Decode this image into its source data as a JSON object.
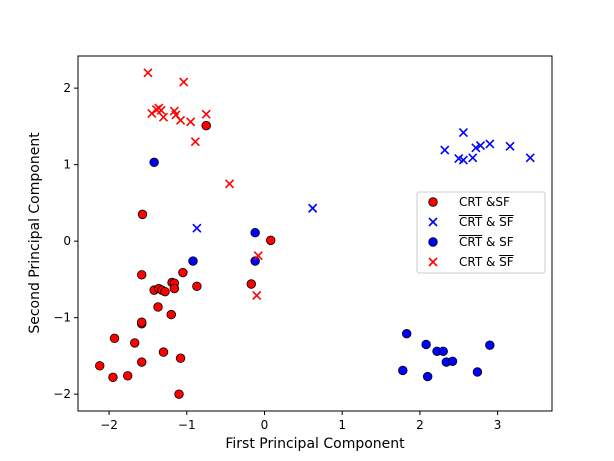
{
  "chart_data": {
    "type": "scatter",
    "title": "",
    "xlabel": "First Principal Component",
    "ylabel": "Second Principal Component",
    "xlim": [
      -2.4,
      3.7
    ],
    "ylim": [
      -2.22,
      2.42
    ],
    "xticks": [
      -2,
      -1,
      0,
      1,
      2,
      3
    ],
    "xtick_labels": [
      "−2",
      "−1",
      "0",
      "1",
      "2",
      "3"
    ],
    "yticks": [
      -2,
      -1,
      0,
      1,
      2
    ],
    "ytick_labels": [
      "−2",
      "−1",
      "0",
      "1",
      "2"
    ],
    "grid": false,
    "legend_position": "right",
    "series": [
      {
        "name": "CRT &SF",
        "marker": "circle",
        "color": "#ff0000",
        "points": [
          [
            -2.12,
            -1.63
          ],
          [
            -1.95,
            -1.78
          ],
          [
            -1.93,
            -1.27
          ],
          [
            -1.76,
            -1.76
          ],
          [
            -1.67,
            -1.33
          ],
          [
            -1.58,
            -1.58
          ],
          [
            -1.58,
            -1.08
          ],
          [
            -1.58,
            -1.06
          ],
          [
            -1.58,
            -0.44
          ],
          [
            -1.57,
            0.35
          ],
          [
            -1.42,
            -0.64
          ],
          [
            -1.37,
            -0.86
          ],
          [
            -1.36,
            -0.62
          ],
          [
            -1.32,
            -0.64
          ],
          [
            -1.3,
            -1.45
          ],
          [
            -1.28,
            -0.66
          ],
          [
            -1.2,
            -0.96
          ],
          [
            -1.19,
            -0.54
          ],
          [
            -1.16,
            -0.55
          ],
          [
            -1.16,
            -0.62
          ],
          [
            -1.1,
            -2.0
          ],
          [
            -1.08,
            -1.53
          ],
          [
            -1.05,
            -0.41
          ],
          [
            -0.87,
            -0.59
          ],
          [
            -0.75,
            1.51
          ],
          [
            -0.17,
            -0.56
          ],
          [
            0.08,
            0.01
          ]
        ]
      },
      {
        "name": "CRT & SF",
        "name_overline": "both",
        "marker": "x",
        "color": "#0000ff",
        "points": [
          [
            -0.87,
            0.17
          ],
          [
            0.62,
            0.43
          ],
          [
            2.32,
            1.19
          ],
          [
            2.5,
            1.08
          ],
          [
            2.56,
            1.42
          ],
          [
            2.56,
            1.06
          ],
          [
            2.68,
            1.09
          ],
          [
            2.72,
            1.22
          ],
          [
            2.78,
            1.25
          ],
          [
            2.9,
            1.27
          ],
          [
            3.16,
            1.24
          ],
          [
            3.42,
            1.09
          ]
        ]
      },
      {
        "name": "CRT & SF",
        "name_overline": "first",
        "marker": "circle",
        "color": "#0000ff",
        "points": [
          [
            -1.42,
            1.03
          ],
          [
            -0.92,
            -0.26
          ],
          [
            -0.12,
            0.11
          ],
          [
            -0.12,
            -0.26
          ],
          [
            1.78,
            -1.69
          ],
          [
            1.83,
            -1.21
          ],
          [
            2.08,
            -1.35
          ],
          [
            2.1,
            -1.77
          ],
          [
            2.22,
            -1.44
          ],
          [
            2.3,
            -1.44
          ],
          [
            2.34,
            -1.58
          ],
          [
            2.42,
            -1.57
          ],
          [
            2.74,
            -1.71
          ],
          [
            2.9,
            -1.36
          ]
        ]
      },
      {
        "name": "CRT & SF",
        "name_overline": "second",
        "marker": "x",
        "color": "#ff0000",
        "points": [
          [
            -1.5,
            2.2
          ],
          [
            -1.45,
            1.67
          ],
          [
            -1.39,
            1.72
          ],
          [
            -1.36,
            1.74
          ],
          [
            -1.33,
            1.71
          ],
          [
            -1.3,
            1.62
          ],
          [
            -1.16,
            1.7
          ],
          [
            -1.14,
            1.65
          ],
          [
            -1.08,
            1.58
          ],
          [
            -1.04,
            2.08
          ],
          [
            -0.95,
            1.56
          ],
          [
            -0.89,
            1.3
          ],
          [
            -0.75,
            1.66
          ],
          [
            -0.45,
            0.75
          ],
          [
            -0.08,
            -0.19
          ],
          [
            -0.1,
            -0.71
          ]
        ]
      }
    ]
  }
}
